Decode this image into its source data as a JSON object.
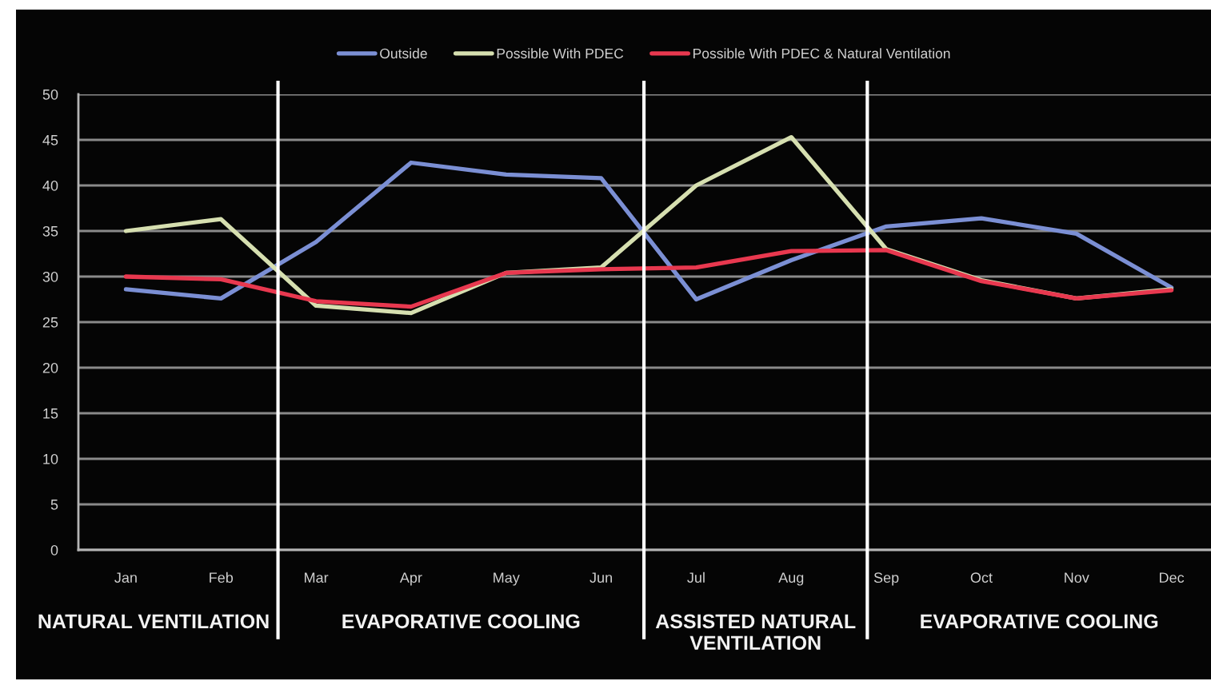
{
  "chart_data": {
    "type": "line",
    "legend": "top",
    "grid": "y",
    "line_style": "solid",
    "ylim": [
      0,
      50
    ],
    "yticks": [
      0,
      5,
      10,
      15,
      20,
      25,
      30,
      35,
      40,
      45,
      50
    ],
    "categories": [
      "Jan",
      "Feb",
      "Mar",
      "Apr",
      "May",
      "Jun",
      "Jul",
      "Aug",
      "Sep",
      "Oct",
      "Nov",
      "Dec"
    ],
    "series": [
      {
        "name": "Outside",
        "color": "#7b8fd4",
        "values": [
          28.6,
          27.6,
          33.8,
          42.5,
          41.2,
          40.8,
          27.5,
          31.8,
          35.5,
          36.4,
          34.7,
          28.8
        ]
      },
      {
        "name": "Possible With PDEC",
        "color": "#d6dfb0",
        "values": [
          35.0,
          36.3,
          26.8,
          26.0,
          30.4,
          31.0,
          40.0,
          45.3,
          33.0,
          29.6,
          27.6,
          28.6
        ]
      },
      {
        "name": "Possible With PDEC & Natural Ventilation",
        "color": "#e8384f",
        "values": [
          30.0,
          29.7,
          27.3,
          26.7,
          30.4,
          30.8,
          31.0,
          32.8,
          32.9,
          29.5,
          27.6,
          28.5
        ]
      }
    ],
    "annotations": [
      "NATURAL VENTILATION",
      "EVAPORATIVE COOLING",
      "ASSISTED NATURAL\nVENTILATION",
      "EVAPORATIVE COOLING"
    ]
  }
}
